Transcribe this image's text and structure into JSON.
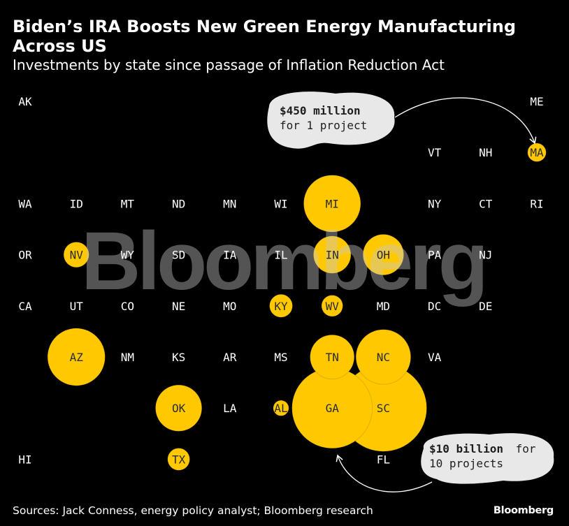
{
  "title": "Biden’s IRA Boosts New Green Energy Manufacturing Across US",
  "subtitle": "Investments by state since passage of Inflation Reduction Act",
  "source": "Sources: Jack Conness, energy policy analyst; Bloomberg research",
  "brand": "Bloomberg",
  "watermark": "Bloomberg",
  "colors": {
    "bubble": "#FFC800",
    "text": "#FFFFFF",
    "bubble_label": "#2B2B2B",
    "callout_fill": "#E8E8E8",
    "background": "#000000"
  },
  "annotations": {
    "small": {
      "bold": "$450 million",
      "rest": "for 1 project"
    },
    "large": {
      "bold": "$10 billion",
      "rest_line1": "for",
      "rest_line2": "10 projects"
    }
  },
  "chart_data": {
    "type": "tile-grid bubble map",
    "grid": [
      {
        "state": "AK",
        "col": 0,
        "row": 0
      },
      {
        "state": "ME",
        "col": 10,
        "row": 0
      },
      {
        "state": "VT",
        "col": 8,
        "row": 1
      },
      {
        "state": "NH",
        "col": 9,
        "row": 1
      },
      {
        "state": "MA",
        "col": 10,
        "row": 1
      },
      {
        "state": "WA",
        "col": 0,
        "row": 2
      },
      {
        "state": "ID",
        "col": 1,
        "row": 2
      },
      {
        "state": "MT",
        "col": 2,
        "row": 2
      },
      {
        "state": "ND",
        "col": 3,
        "row": 2
      },
      {
        "state": "MN",
        "col": 4,
        "row": 2
      },
      {
        "state": "WI",
        "col": 5,
        "row": 2
      },
      {
        "state": "MI",
        "col": 6,
        "row": 2
      },
      {
        "state": "NY",
        "col": 8,
        "row": 2
      },
      {
        "state": "CT",
        "col": 9,
        "row": 2
      },
      {
        "state": "RI",
        "col": 10,
        "row": 2
      },
      {
        "state": "OR",
        "col": 0,
        "row": 3
      },
      {
        "state": "NV",
        "col": 1,
        "row": 3
      },
      {
        "state": "WY",
        "col": 2,
        "row": 3
      },
      {
        "state": "SD",
        "col": 3,
        "row": 3
      },
      {
        "state": "IA",
        "col": 4,
        "row": 3
      },
      {
        "state": "IL",
        "col": 5,
        "row": 3
      },
      {
        "state": "IN",
        "col": 6,
        "row": 3
      },
      {
        "state": "OH",
        "col": 7,
        "row": 3
      },
      {
        "state": "PA",
        "col": 8,
        "row": 3
      },
      {
        "state": "NJ",
        "col": 9,
        "row": 3
      },
      {
        "state": "CA",
        "col": 0,
        "row": 4
      },
      {
        "state": "UT",
        "col": 1,
        "row": 4
      },
      {
        "state": "CO",
        "col": 2,
        "row": 4
      },
      {
        "state": "NE",
        "col": 3,
        "row": 4
      },
      {
        "state": "MO",
        "col": 4,
        "row": 4
      },
      {
        "state": "KY",
        "col": 5,
        "row": 4
      },
      {
        "state": "WV",
        "col": 6,
        "row": 4
      },
      {
        "state": "MD",
        "col": 7,
        "row": 4
      },
      {
        "state": "DC",
        "col": 8,
        "row": 4
      },
      {
        "state": "DE",
        "col": 9,
        "row": 4
      },
      {
        "state": "AZ",
        "col": 1,
        "row": 5
      },
      {
        "state": "NM",
        "col": 2,
        "row": 5
      },
      {
        "state": "KS",
        "col": 3,
        "row": 5
      },
      {
        "state": "AR",
        "col": 4,
        "row": 5
      },
      {
        "state": "MS",
        "col": 5,
        "row": 5
      },
      {
        "state": "TN",
        "col": 6,
        "row": 5
      },
      {
        "state": "NC",
        "col": 7,
        "row": 5
      },
      {
        "state": "VA",
        "col": 8,
        "row": 5
      },
      {
        "state": "OK",
        "col": 3,
        "row": 6
      },
      {
        "state": "LA",
        "col": 4,
        "row": 6
      },
      {
        "state": "AL",
        "col": 5,
        "row": 6
      },
      {
        "state": "GA",
        "col": 6,
        "row": 6
      },
      {
        "state": "SC",
        "col": 7,
        "row": 6
      },
      {
        "state": "HI",
        "col": 0,
        "row": 7
      },
      {
        "state": "TX",
        "col": 3,
        "row": 7
      },
      {
        "state": "FL",
        "col": 7,
        "row": 7
      }
    ],
    "investment_usd_millions": {
      "MA": 450,
      "MI": 4300,
      "NV": 850,
      "IN": 1850,
      "OH": 2200,
      "KY": 700,
      "WV": 600,
      "AZ": 4400,
      "TN": 2600,
      "NC": 4000,
      "OK": 2850,
      "AL": 320,
      "GA": 8600,
      "SC": 10000,
      "TX": 650
    },
    "reference": {
      "value_usd_millions": 10000,
      "projects": 10,
      "state": "SC"
    },
    "reference_small": {
      "value_usd_millions": 450,
      "projects": 1,
      "state": "MA"
    }
  }
}
